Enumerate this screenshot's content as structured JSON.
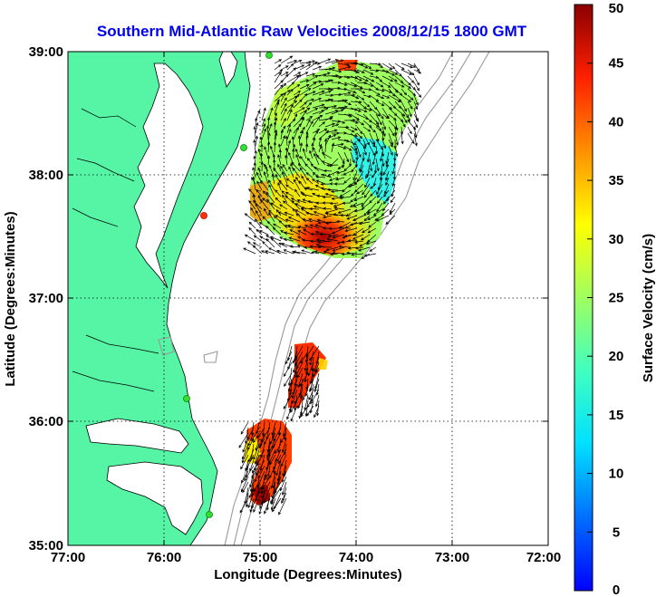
{
  "title": "Southern Mid-Atlantic Raw Velocities 2008/12/15 1800 GMT",
  "xlabel": "Longitude (Degrees:Minutes)",
  "ylabel": "Latitude (Degrees:Minutes)",
  "colorbar": {
    "label": "Surface Velocity (cm/s)",
    "ticks": [
      "0",
      "5",
      "10",
      "15",
      "20",
      "25",
      "30",
      "35",
      "40",
      "45",
      "50"
    ],
    "range": [
      0,
      50
    ]
  },
  "x_ticks": [
    "77:00",
    "76:00",
    "75:00",
    "74:00",
    "73:00",
    "72:00"
  ],
  "y_ticks": [
    "35:00",
    "36:00",
    "37:00",
    "38:00",
    "39:00"
  ],
  "colors": {
    "land": "#55f5a5",
    "coast": "#000000",
    "bathymetry": "#999999",
    "title": "#0000ee",
    "grid": "#000000"
  },
  "chart_data": {
    "type": "heatmap",
    "title": "Southern Mid-Atlantic Raw Velocities 2008/12/15 1800 GMT",
    "xlabel": "Longitude (Degrees:Minutes)",
    "ylabel": "Latitude (Degrees:Minutes)",
    "xlim": [
      -77.0,
      -72.0
    ],
    "ylim": [
      35.0,
      39.0
    ],
    "grid": true,
    "colorbar_range": [
      0,
      50
    ],
    "fields": [
      {
        "region": "northern",
        "lon_range": [
          -75.1,
          -73.5
        ],
        "lat_range": [
          37.4,
          38.95
        ],
        "speed_min_cm_s": 8,
        "speed_max_cm_s": 50
      },
      {
        "region": "southern",
        "lon_range": [
          -75.15,
          -74.3
        ],
        "lat_range": [
          35.4,
          36.55
        ],
        "speed_min_cm_s": 20,
        "speed_max_cm_s": 50
      }
    ]
  }
}
